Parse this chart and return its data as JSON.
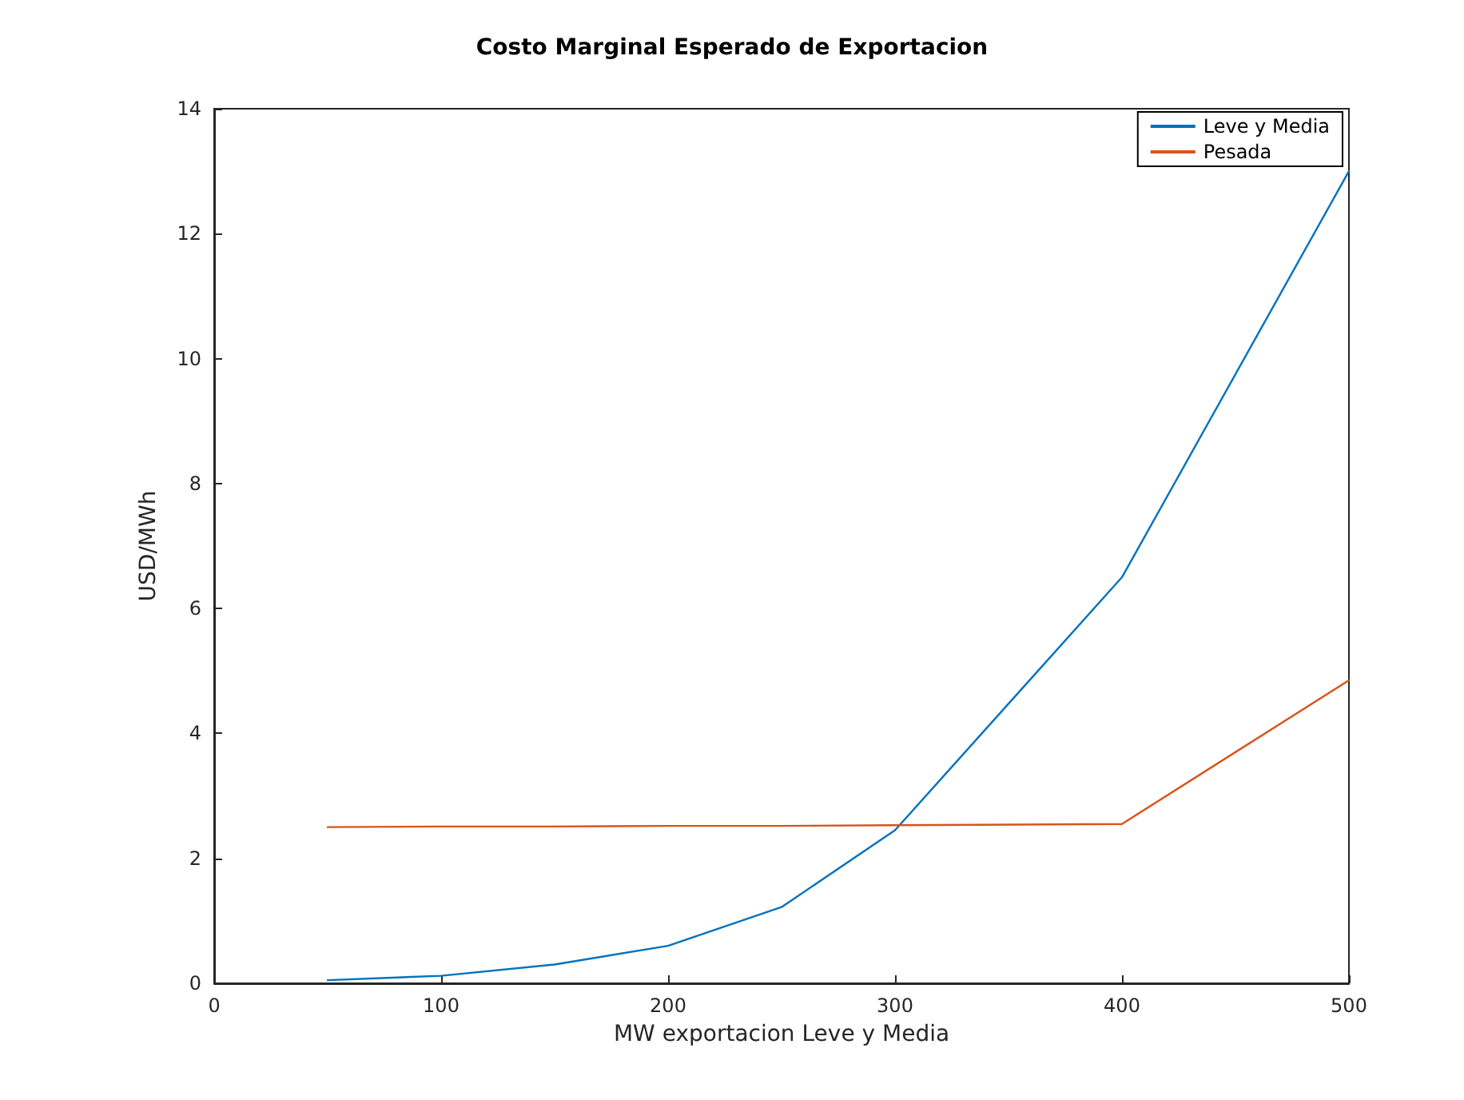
{
  "chart_data": {
    "type": "line",
    "title": "Costo Marginal Esperado de Exportacion",
    "xlabel": "MW exportacion Leve y Media",
    "ylabel": "USD/MWh",
    "x": [
      50,
      100,
      150,
      200,
      250,
      300,
      400,
      500
    ],
    "series": [
      {
        "name": "Leve y Media",
        "color": "#0072bd",
        "values": [
          0.05,
          0.12,
          0.3,
          0.6,
          1.22,
          2.45,
          6.5,
          13
        ]
      },
      {
        "name": "Pesada",
        "color": "#d95319",
        "values": [
          2.5,
          2.51,
          2.51,
          2.52,
          2.52,
          2.53,
          2.55,
          4.85
        ]
      }
    ],
    "xlim": [
      0,
      500
    ],
    "xticks": [
      0,
      100,
      200,
      300,
      400,
      500
    ],
    "ylim": [
      0,
      14
    ],
    "yticks": [
      0,
      2,
      4,
      6,
      8,
      10,
      12,
      14
    ],
    "grid": false,
    "legend": "top right",
    "marker": "none",
    "line_style": "solid"
  }
}
